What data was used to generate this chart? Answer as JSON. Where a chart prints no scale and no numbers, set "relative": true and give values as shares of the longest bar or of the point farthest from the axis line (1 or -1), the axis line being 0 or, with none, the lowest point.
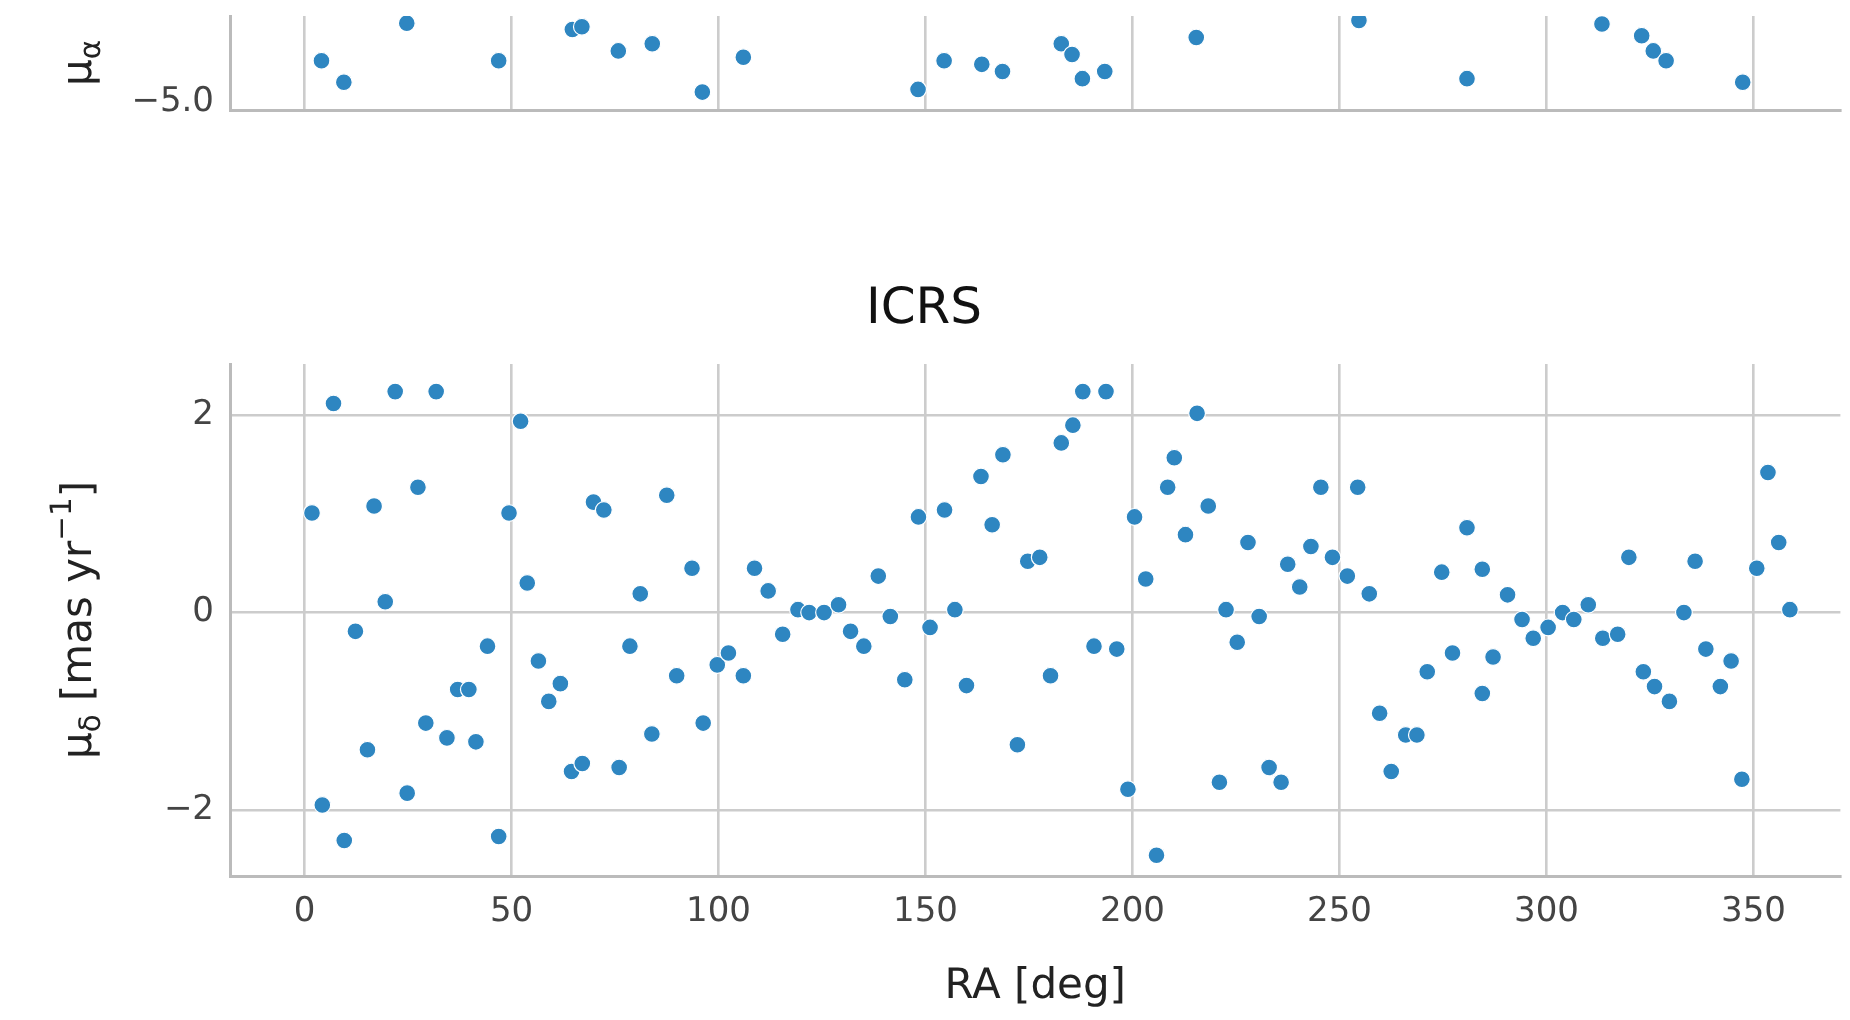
{
  "chart_data": [
    {
      "type": "scatter",
      "ylabel": "μ$_{α}$",
      "relative": true,
      "color": "#2e86c1",
      "marker": "circle",
      "grid": true,
      "tick_labels": false,
      "xlim": [
        -18,
        371
      ],
      "xticks": [
        0,
        50,
        100,
        150,
        200,
        250,
        300,
        350
      ],
      "annotations": [
        "−5.0"
      ],
      "x": [
        4.1,
        9.5,
        24.7,
        46.9,
        64.7,
        67.0,
        75.8,
        84.0,
        96.1,
        106.0,
        148.2,
        154.5,
        163.6,
        168.6,
        182.8,
        185.4,
        187.9,
        193.3,
        215.4,
        254.7,
        280.8,
        313.4,
        323.0,
        325.8,
        328.9,
        347.4
      ],
      "values": [
        0.55,
        0.31,
        0.97,
        0.55,
        0.9,
        0.93,
        0.66,
        0.74,
        0.2,
        0.59,
        0.23,
        0.55,
        0.51,
        0.43,
        0.74,
        0.62,
        0.35,
        0.43,
        0.81,
        1,
        0.35,
        0.96,
        0.83,
        0.66,
        0.55,
        0.31
      ]
    },
    {
      "type": "scatter",
      "title": "ICRS",
      "xlabel": "RA [deg]",
      "ylabel": "μ$_{δ}$ [mas yr$^{−1}$]",
      "color": "#2e86c1",
      "marker": "circle",
      "grid": true,
      "xlim": [
        -18,
        371
      ],
      "xticks": [
        0,
        50,
        100,
        150,
        200,
        250,
        300,
        350
      ],
      "ylim": [
        -2.67,
        2.52
      ],
      "yticks": [
        {
          "value": -2,
          "label": "−2"
        },
        0,
        2
      ],
      "x": [
        7.0,
        21.9,
        31.8,
        52.2,
        1.8,
        16.8,
        27.4,
        49.4,
        69.8,
        72.3,
        87.5,
        53.8,
        81.1,
        93.6,
        108.7,
        112.0,
        19.5,
        12.3,
        44.2,
        56.5,
        61.8,
        59.0,
        78.6,
        89.9,
        99.7,
        102.4,
        106.0,
        37.0,
        39.7,
        29.3,
        34.4,
        41.4,
        15.2,
        83.9,
        96.3,
        64.5,
        67.1,
        76.0,
        24.8,
        4.3,
        9.6,
        46.9,
        115.5,
        119.2,
        121.9,
        125.5,
        129.0,
        131.9,
        135.1,
        138.6,
        141.5,
        145.0,
        148.3,
        151.1,
        154.6,
        157.1,
        159.9,
        163.4,
        166.1,
        168.7,
        172.2,
        174.7,
        177.6,
        180.2,
        182.8,
        185.6,
        188.0,
        190.7,
        193.6,
        196.2,
        198.9,
        200.5,
        203.2,
        205.8,
        208.5,
        210.1,
        212.8,
        215.6,
        218.3,
        221.0,
        222.6,
        225.3,
        227.9,
        230.6,
        233.0,
        235.9,
        237.5,
        240.4,
        243.1,
        245.5,
        248.3,
        251.9,
        254.4,
        257.2,
        259.7,
        262.5,
        266.0,
        268.7,
        271.2,
        274.7,
        277.3,
        280.8,
        284.5,
        284.5,
        287.1,
        290.6,
        294.1,
        296.8,
        300.4,
        303.9,
        306.6,
        310.1,
        313.6,
        317.2,
        319.9,
        323.4,
        326.1,
        329.7,
        333.2,
        335.9,
        338.5,
        342.0,
        344.6,
        347.2,
        350.8,
        353.5,
        356.1,
        358.8
      ],
      "values": [
        2.12,
        2.24,
        2.24,
        1.94,
        1.01,
        1.08,
        1.27,
        1.01,
        1.12,
        1.04,
        1.19,
        0.3,
        0.19,
        0.45,
        0.45,
        0.22,
        0.11,
        -0.19,
        -0.34,
        -0.49,
        -0.72,
        -0.9,
        -0.34,
        -0.64,
        -0.53,
        -0.41,
        -0.64,
        -0.78,
        -0.78,
        -1.12,
        -1.27,
        -1.31,
        -1.39,
        -1.23,
        -1.12,
        -1.61,
        -1.53,
        -1.57,
        -1.83,
        -1.95,
        -2.31,
        -2.27,
        -0.22,
        0.03,
        0.0,
        0.0,
        0.08,
        -0.19,
        -0.34,
        0.37,
        -0.04,
        -0.68,
        0.97,
        -0.15,
        1.04,
        0.03,
        -0.74,
        1.38,
        0.89,
        1.6,
        -1.34,
        0.52,
        0.56,
        -0.64,
        1.72,
        1.9,
        2.24,
        -0.34,
        2.24,
        -0.37,
        -1.79,
        0.97,
        0.34,
        -2.46,
        1.27,
        1.57,
        0.79,
        2.02,
        1.08,
        -1.72,
        0.03,
        -0.3,
        0.71,
        -0.04,
        -1.57,
        -1.72,
        0.49,
        0.26,
        0.67,
        1.27,
        0.56,
        0.37,
        1.27,
        0.19,
        -1.02,
        -1.61,
        -1.24,
        -1.24,
        -0.6,
        0.41,
        -0.41,
        0.86,
        0.44,
        -0.82,
        -0.45,
        0.18,
        -0.07,
        -0.26,
        -0.15,
        0.0,
        -0.07,
        0.08,
        -0.26,
        -0.22,
        0.56,
        -0.6,
        -0.75,
        -0.9,
        0.0,
        0.52,
        -0.37,
        -0.75,
        -0.49,
        -1.69,
        0.45,
        1.42,
        0.71,
        0.03
      ]
    }
  ]
}
